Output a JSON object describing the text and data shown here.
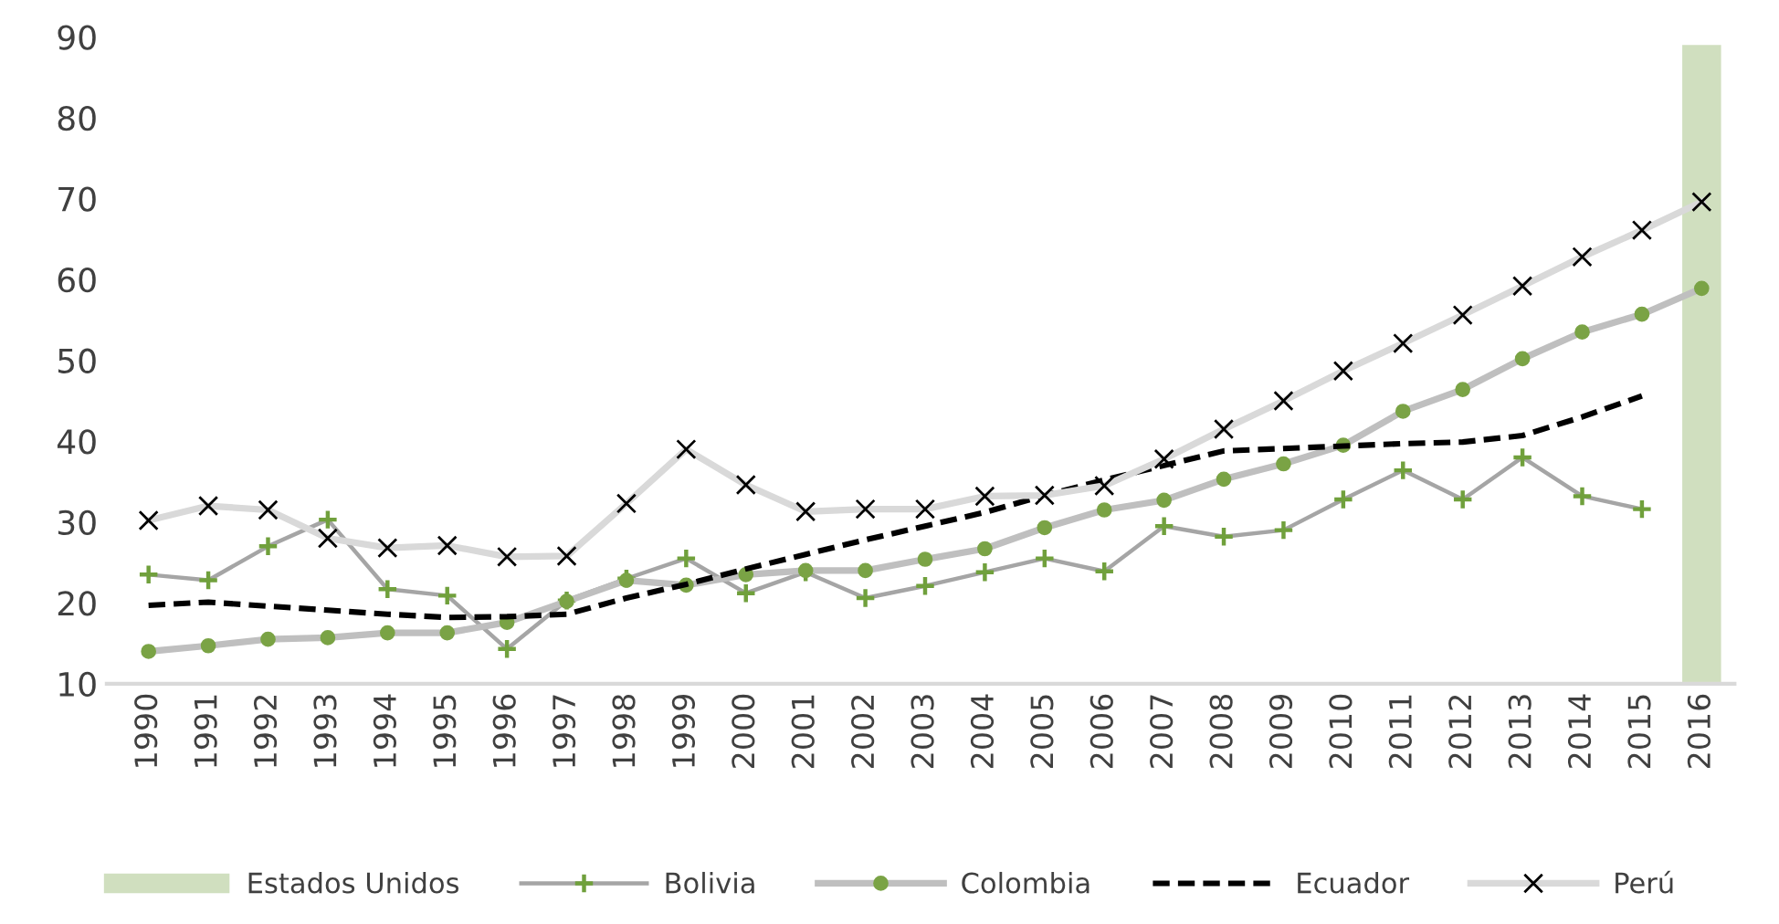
{
  "chart_data": {
    "type": "line",
    "categories": [
      "1990",
      "1991",
      "1992",
      "1993",
      "1994",
      "1995",
      "1996",
      "1997",
      "1998",
      "1999",
      "2000",
      "2001",
      "2002",
      "2003",
      "2004",
      "2005",
      "2006",
      "2007",
      "2008",
      "2009",
      "2010",
      "2011",
      "2012",
      "2013",
      "2014",
      "2015",
      "2016"
    ],
    "series": [
      {
        "name": "Estados Unidos",
        "type": "bar",
        "color": "#d0dfbf",
        "values": [
          null,
          null,
          null,
          null,
          null,
          null,
          null,
          null,
          null,
          null,
          null,
          null,
          null,
          null,
          null,
          null,
          null,
          null,
          null,
          null,
          null,
          null,
          null,
          null,
          null,
          null,
          89
        ]
      },
      {
        "name": "Bolivia",
        "color": "#a5a5a5",
        "marker": "cross",
        "line_style": "solid",
        "values": [
          23.5,
          22.8,
          27,
          30.3,
          21.7,
          20.9,
          14.3,
          20.3,
          23,
          25.5,
          21.2,
          23.8,
          20.6,
          22.1,
          23.8,
          25.5,
          23.9,
          29.5,
          28.2,
          29,
          32.8,
          36.4,
          32.8,
          38,
          33.2,
          31.6,
          null
        ]
      },
      {
        "name": "Colombia",
        "color": "#bfbfbf",
        "marker": "circle",
        "line_style": "solid",
        "values": [
          14,
          14.7,
          15.5,
          15.7,
          16.3,
          16.3,
          17.6,
          20.2,
          22.8,
          22.2,
          23.5,
          24,
          24,
          25.4,
          26.7,
          29.3,
          31.5,
          32.7,
          35.3,
          37.2,
          39.5,
          43.7,
          46.4,
          50.2,
          53.5,
          55.7,
          58.9
        ]
      },
      {
        "name": "Ecuador",
        "color": "#000000",
        "marker": "none",
        "line_style": "dashed",
        "values": [
          19.7,
          20.1,
          19.6,
          19.1,
          18.6,
          18.2,
          18.3,
          18.6,
          20.6,
          22.3,
          24.2,
          26,
          27.8,
          29.5,
          31.2,
          33.3,
          35.2,
          37,
          38.8,
          39.1,
          39.4,
          39.7,
          39.9,
          40.7,
          43,
          45.6,
          null
        ]
      },
      {
        "name": "Perú",
        "color": "#d9d9d9",
        "marker": "x",
        "line_style": "solid",
        "values": [
          30.2,
          32,
          31.5,
          28,
          26.8,
          27.1,
          25.7,
          25.8,
          32.3,
          39,
          34.6,
          31.3,
          31.6,
          31.6,
          33.2,
          33.3,
          34.5,
          37.8,
          41.5,
          45,
          48.7,
          52.1,
          55.6,
          59.2,
          62.8,
          66.1,
          69.6
        ]
      }
    ],
    "ylim": [
      10,
      90
    ],
    "yticks": [
      10,
      20,
      30,
      40,
      50,
      60,
      70,
      80,
      90
    ],
    "grid": false,
    "legend": "bottom"
  }
}
